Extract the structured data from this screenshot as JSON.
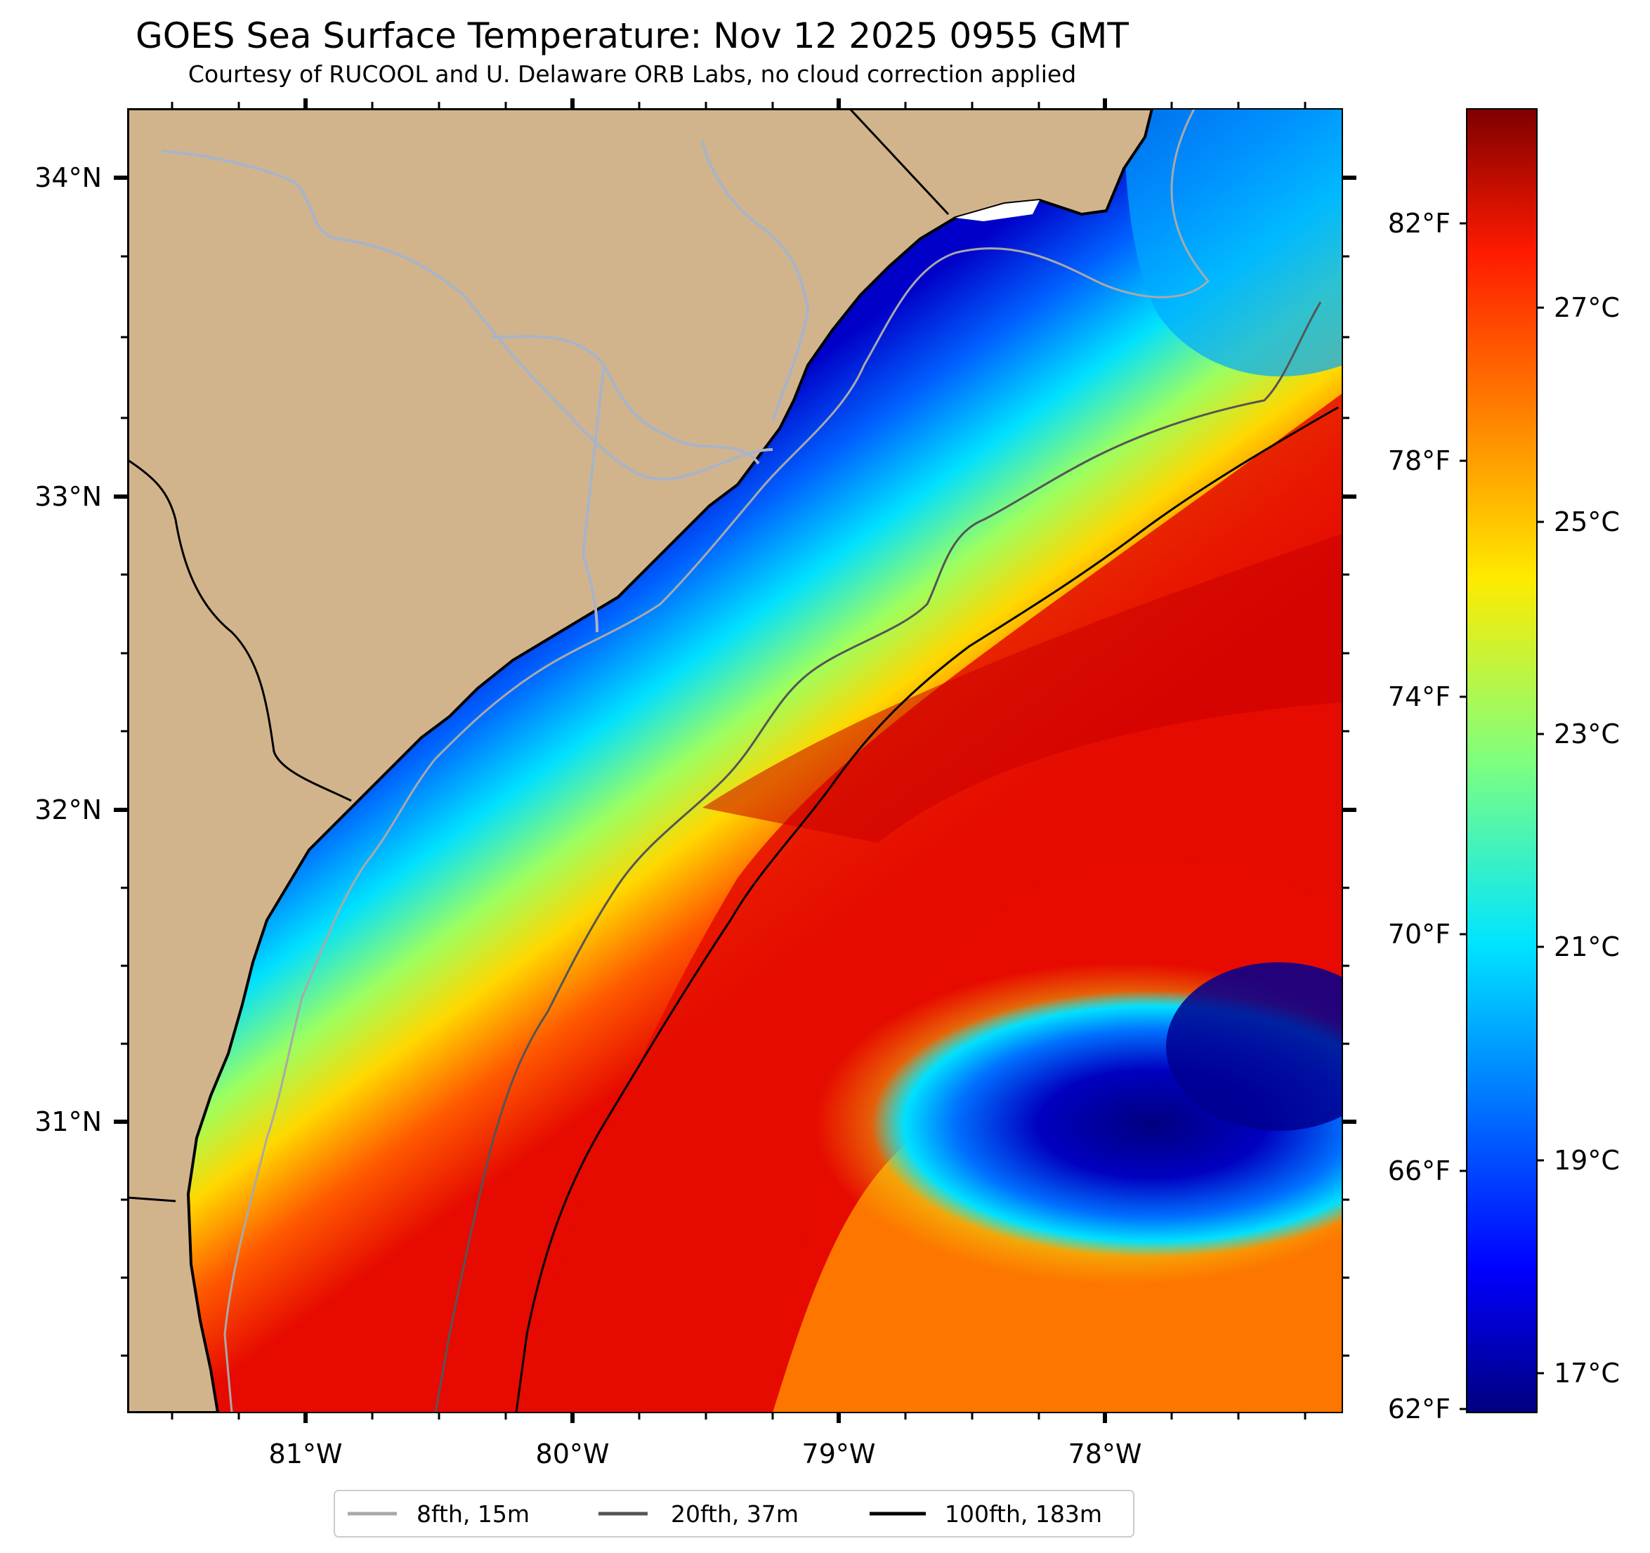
{
  "title": "GOES Sea Surface Temperature: Nov 12 2025 0955 GMT",
  "subtitle": "Courtesy of RUCOOL and U. Delaware ORB Labs, no cloud correction applied",
  "map": {
    "lon_labels": [
      "81°W",
      "80°W",
      "79°W",
      "78°W"
    ],
    "lat_labels": [
      "34°N",
      "33°N",
      "32°N",
      "31°N"
    ],
    "colors": {
      "land": "#d2b48c",
      "river": "#a8b4c8",
      "coast": "#000000"
    }
  },
  "colorbar": {
    "fahrenheit_labels": [
      "82°F",
      "78°F",
      "74°F",
      "70°F",
      "66°F",
      "62°F"
    ],
    "celsius_labels": [
      "27°C",
      "25°C",
      "23°C",
      "21°C",
      "19°C",
      "17°C"
    ],
    "colormap": "jet"
  },
  "legend": {
    "items": [
      {
        "label": "8fth, 15m",
        "color": "#a9a9a9"
      },
      {
        "label": "20fth, 37m",
        "color": "#555555"
      },
      {
        "label": "100fth, 183m",
        "color": "#000000"
      }
    ]
  }
}
